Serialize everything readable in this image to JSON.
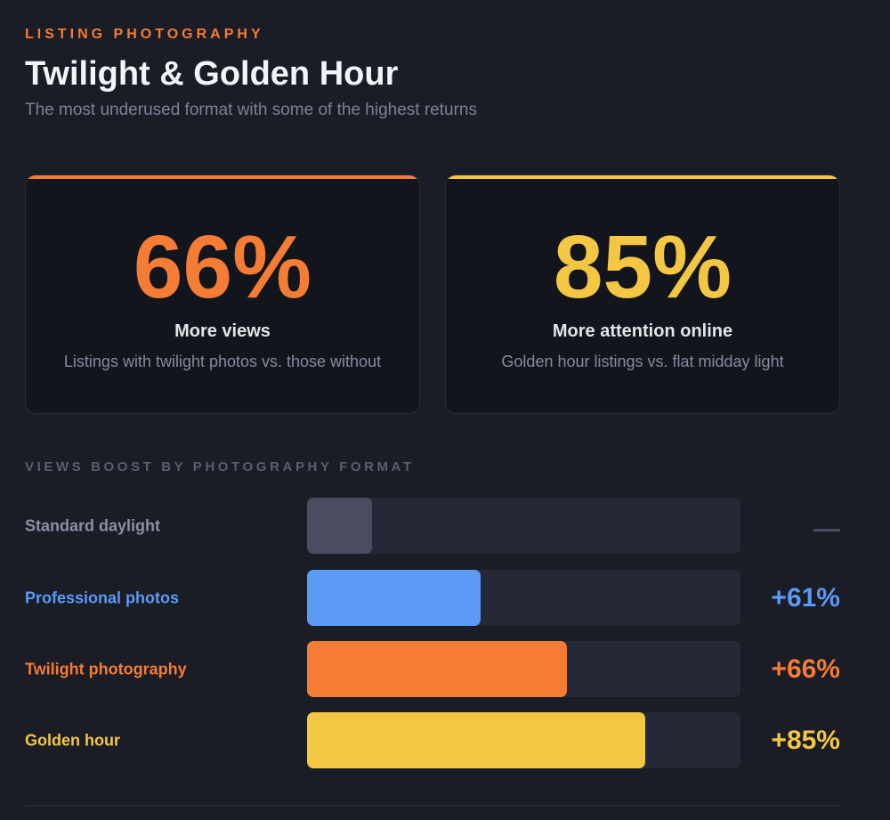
{
  "header": {
    "eyebrow": "LISTING PHOTOGRAPHY",
    "title": "Twilight & Golden Hour",
    "subtitle": "The most underused format with some of the highest returns"
  },
  "stats": [
    {
      "value": "66%",
      "label": "More views",
      "description": "Listings with twilight photos vs. those without",
      "color": "#f47c35"
    },
    {
      "value": "85%",
      "label": "More attention online",
      "description": "Golden hour listings vs. flat midday light",
      "color": "#f3c643"
    }
  ],
  "chart_data": {
    "type": "bar",
    "orientation": "horizontal",
    "title": "VIEWS BOOST BY PHOTOGRAPHY FORMAT",
    "categories": [
      "Standard daylight",
      "Professional photos",
      "Twilight photography",
      "Golden hour"
    ],
    "values": [
      0,
      61,
      66,
      85
    ],
    "value_labels": [
      "",
      "+61%",
      "+66%",
      "+85%"
    ],
    "bar_fraction": [
      0.15,
      0.4,
      0.6,
      0.78
    ],
    "label_colors": [
      "#8c90a3",
      "#5b9af5",
      "#f47c35",
      "#f3c643"
    ],
    "bar_colors": [
      "#4a4d60",
      "#5b9af5",
      "#f47c35",
      "#f3c643"
    ],
    "baseline_marker": "dash"
  }
}
